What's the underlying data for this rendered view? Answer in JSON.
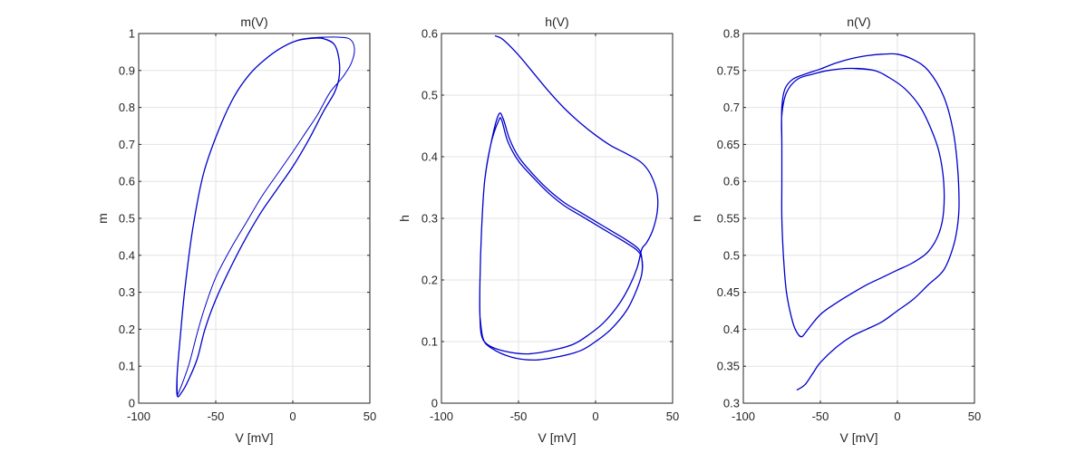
{
  "chart_data": [
    {
      "type": "line",
      "title": "m(V)",
      "xlabel": "V [mV]",
      "ylabel": "m",
      "xlim": [
        -100,
        50
      ],
      "ylim": [
        0,
        1
      ],
      "xticks": [
        "-100",
        "-50",
        "0",
        "50"
      ],
      "yticks": [
        "0",
        "0.1",
        "0.2",
        "0.3",
        "0.4",
        "0.5",
        "0.6",
        "0.7",
        "0.8",
        "0.9",
        "1"
      ],
      "grid": true,
      "series": [
        {
          "values": [
            [
              -75,
              0.02
            ],
            [
              -72,
              0.05
            ],
            [
              -67,
              0.11
            ],
            [
              -62,
              0.19
            ],
            [
              -57,
              0.26
            ],
            [
              -50,
              0.34
            ],
            [
              -40,
              0.42
            ],
            [
              -30,
              0.49
            ],
            [
              -20,
              0.56
            ],
            [
              -10,
              0.62
            ],
            [
              0,
              0.68
            ],
            [
              8,
              0.73
            ],
            [
              16,
              0.78
            ],
            [
              24,
              0.84
            ],
            [
              32,
              0.88
            ],
            [
              38,
              0.92
            ],
            [
              40,
              0.96
            ],
            [
              37,
              0.985
            ],
            [
              30,
              0.99
            ],
            [
              20,
              0.99
            ]
          ]
        },
        {
          "values": [
            [
              20,
              0.99
            ],
            [
              10,
              0.987
            ],
            [
              2,
              0.98
            ],
            [
              -8,
              0.96
            ],
            [
              -18,
              0.93
            ],
            [
              -28,
              0.89
            ],
            [
              -38,
              0.83
            ],
            [
              -48,
              0.74
            ],
            [
              -58,
              0.62
            ],
            [
              -65,
              0.47
            ],
            [
              -70,
              0.31
            ],
            [
              -73,
              0.18
            ],
            [
              -75,
              0.08
            ],
            [
              -75,
              0.02
            ],
            [
              -72,
              0.03
            ],
            [
              -68,
              0.06
            ],
            [
              -62,
              0.12
            ],
            [
              -57,
              0.2
            ],
            [
              -50,
              0.28
            ],
            [
              -40,
              0.37
            ],
            [
              -30,
              0.45
            ],
            [
              -20,
              0.52
            ],
            [
              -10,
              0.58
            ],
            [
              0,
              0.64
            ],
            [
              10,
              0.71
            ],
            [
              20,
              0.79
            ],
            [
              27,
              0.84
            ],
            [
              30,
              0.88
            ],
            [
              30,
              0.93
            ],
            [
              27,
              0.97
            ],
            [
              20,
              0.986
            ],
            [
              12,
              0.987
            ],
            [
              2,
              0.98
            ],
            [
              -8,
              0.96
            ],
            [
              -18,
              0.93
            ],
            [
              -28,
              0.89
            ],
            [
              -38,
              0.83
            ],
            [
              -48,
              0.74
            ],
            [
              -58,
              0.62
            ],
            [
              -65,
              0.47
            ],
            [
              -70,
              0.31
            ],
            [
              -73,
              0.18
            ],
            [
              -75,
              0.08
            ],
            [
              -75,
              0.02
            ]
          ]
        }
      ]
    },
    {
      "type": "line",
      "title": "h(V)",
      "xlabel": "V [mV]",
      "ylabel": "h",
      "xlim": [
        -100,
        50
      ],
      "ylim": [
        0,
        0.6
      ],
      "xticks": [
        "-100",
        "-50",
        "0",
        "50"
      ],
      "yticks": [
        "0",
        "0.1",
        "0.2",
        "0.3",
        "0.4",
        "0.5",
        "0.6"
      ],
      "grid": true,
      "series": [
        {
          "values": [
            [
              -65,
              0.596
            ],
            [
              -60,
              0.59
            ],
            [
              -50,
              0.565
            ],
            [
              -40,
              0.535
            ],
            [
              -30,
              0.505
            ],
            [
              -20,
              0.478
            ],
            [
              -10,
              0.455
            ],
            [
              0,
              0.435
            ],
            [
              10,
              0.418
            ],
            [
              20,
              0.405
            ],
            [
              30,
              0.39
            ],
            [
              36,
              0.37
            ],
            [
              40,
              0.34
            ],
            [
              40,
              0.31
            ],
            [
              37,
              0.28
            ],
            [
              33,
              0.26
            ],
            [
              30,
              0.25
            ],
            [
              27,
              0.22
            ],
            [
              22,
              0.19
            ],
            [
              15,
              0.16
            ],
            [
              5,
              0.13
            ],
            [
              -5,
              0.11
            ],
            [
              -15,
              0.095
            ],
            [
              -30,
              0.085
            ],
            [
              -45,
              0.08
            ],
            [
              -60,
              0.085
            ],
            [
              -70,
              0.095
            ],
            [
              -74,
              0.11
            ],
            [
              -75,
              0.14
            ],
            [
              -75,
              0.2
            ],
            [
              -74,
              0.28
            ],
            [
              -72,
              0.36
            ],
            [
              -68,
              0.42
            ],
            [
              -63,
              0.468
            ],
            [
              -60,
              0.462
            ],
            [
              -56,
              0.43
            ],
            [
              -50,
              0.4
            ],
            [
              -40,
              0.37
            ],
            [
              -30,
              0.345
            ],
            [
              -20,
              0.325
            ],
            [
              -10,
              0.31
            ],
            [
              0,
              0.295
            ],
            [
              10,
              0.28
            ],
            [
              20,
              0.265
            ],
            [
              28,
              0.25
            ],
            [
              30,
              0.235
            ],
            [
              30,
              0.21
            ],
            [
              26,
              0.18
            ],
            [
              20,
              0.15
            ],
            [
              10,
              0.12
            ],
            [
              0,
              0.1
            ],
            [
              -10,
              0.085
            ],
            [
              -25,
              0.075
            ],
            [
              -40,
              0.07
            ],
            [
              -55,
              0.075
            ],
            [
              -68,
              0.09
            ],
            [
              -73,
              0.105
            ],
            [
              -75,
              0.14
            ],
            [
              -75,
              0.2
            ],
            [
              -74,
              0.28
            ],
            [
              -72,
              0.36
            ],
            [
              -68,
              0.42
            ],
            [
              -63,
              0.458
            ],
            [
              -61,
              0.46
            ],
            [
              -57,
              0.425
            ],
            [
              -50,
              0.393
            ],
            [
              -40,
              0.365
            ],
            [
              -30,
              0.34
            ],
            [
              -20,
              0.32
            ],
            [
              -10,
              0.305
            ],
            [
              0,
              0.29
            ],
            [
              10,
              0.275
            ],
            [
              20,
              0.26
            ],
            [
              27,
              0.248
            ],
            [
              30,
              0.235
            ],
            [
              30,
              0.21
            ],
            [
              26,
              0.18
            ],
            [
              20,
              0.15
            ],
            [
              10,
              0.12
            ],
            [
              0,
              0.1
            ],
            [
              -10,
              0.085
            ],
            [
              -25,
              0.075
            ],
            [
              -40,
              0.07
            ],
            [
              -55,
              0.075
            ],
            [
              -68,
              0.09
            ],
            [
              -73,
              0.105
            ],
            [
              -75,
              0.14
            ]
          ]
        }
      ]
    },
    {
      "type": "line",
      "title": "n(V)",
      "xlabel": "V [mV]",
      "ylabel": "n",
      "xlim": [
        -100,
        50
      ],
      "ylim": [
        0.3,
        0.8
      ],
      "xticks": [
        "-100",
        "-50",
        "0",
        "50"
      ],
      "yticks": [
        "0.3",
        "0.35",
        "0.4",
        "0.45",
        "0.5",
        "0.55",
        "0.6",
        "0.65",
        "0.7",
        "0.75",
        "0.8"
      ],
      "grid": true,
      "series": [
        {
          "values": [
            [
              -65,
              0.318
            ],
            [
              -60,
              0.325
            ],
            [
              -55,
              0.34
            ],
            [
              -50,
              0.355
            ],
            [
              -40,
              0.375
            ],
            [
              -30,
              0.39
            ],
            [
              -20,
              0.4
            ],
            [
              -10,
              0.41
            ],
            [
              0,
              0.425
            ],
            [
              10,
              0.44
            ],
            [
              20,
              0.46
            ],
            [
              30,
              0.48
            ],
            [
              36,
              0.51
            ],
            [
              39,
              0.54
            ],
            [
              40,
              0.57
            ],
            [
              39,
              0.62
            ],
            [
              36,
              0.67
            ],
            [
              30,
              0.715
            ],
            [
              20,
              0.75
            ],
            [
              10,
              0.765
            ],
            [
              0,
              0.772
            ],
            [
              -10,
              0.772
            ],
            [
              -20,
              0.77
            ],
            [
              -30,
              0.766
            ],
            [
              -40,
              0.76
            ],
            [
              -50,
              0.752
            ],
            [
              -60,
              0.745
            ],
            [
              -68,
              0.738
            ],
            [
              -73,
              0.725
            ],
            [
              -75,
              0.7
            ],
            [
              -75,
              0.65
            ],
            [
              -75,
              0.6
            ],
            [
              -75,
              0.55
            ],
            [
              -74,
              0.5
            ],
            [
              -72,
              0.45
            ],
            [
              -68,
              0.41
            ],
            [
              -65,
              0.395
            ],
            [
              -62,
              0.39
            ],
            [
              -58,
              0.4
            ],
            [
              -50,
              0.42
            ],
            [
              -40,
              0.435
            ],
            [
              -30,
              0.448
            ],
            [
              -20,
              0.46
            ],
            [
              -10,
              0.47
            ],
            [
              0,
              0.48
            ],
            [
              10,
              0.49
            ],
            [
              20,
              0.505
            ],
            [
              27,
              0.53
            ],
            [
              30,
              0.56
            ],
            [
              30,
              0.6
            ],
            [
              27,
              0.64
            ],
            [
              22,
              0.67
            ],
            [
              15,
              0.7
            ],
            [
              5,
              0.725
            ],
            [
              -5,
              0.74
            ],
            [
              -15,
              0.75
            ],
            [
              -30,
              0.753
            ],
            [
              -45,
              0.75
            ],
            [
              -55,
              0.745
            ],
            [
              -65,
              0.738
            ],
            [
              -72,
              0.72
            ],
            [
              -75,
              0.69
            ],
            [
              -75,
              0.65
            ],
            [
              -75,
              0.6
            ],
            [
              -75,
              0.55
            ],
            [
              -74,
              0.5
            ],
            [
              -72,
              0.45
            ],
            [
              -68,
              0.41
            ],
            [
              -65,
              0.395
            ],
            [
              -62,
              0.39
            ],
            [
              -58,
              0.4
            ],
            [
              -50,
              0.42
            ],
            [
              -40,
              0.435
            ],
            [
              -30,
              0.448
            ],
            [
              -20,
              0.46
            ],
            [
              -10,
              0.47
            ],
            [
              0,
              0.48
            ],
            [
              10,
              0.49
            ],
            [
              20,
              0.505
            ],
            [
              27,
              0.53
            ],
            [
              30,
              0.56
            ],
            [
              30,
              0.6
            ],
            [
              27,
              0.64
            ],
            [
              22,
              0.67
            ],
            [
              15,
              0.7
            ],
            [
              5,
              0.725
            ],
            [
              -5,
              0.74
            ],
            [
              -15,
              0.75
            ],
            [
              -30,
              0.753
            ]
          ]
        }
      ]
    }
  ],
  "colors": {
    "line": "#0000cc",
    "grid": "#e3e3e3",
    "axis": "#262626",
    "background": "#ffffff"
  }
}
